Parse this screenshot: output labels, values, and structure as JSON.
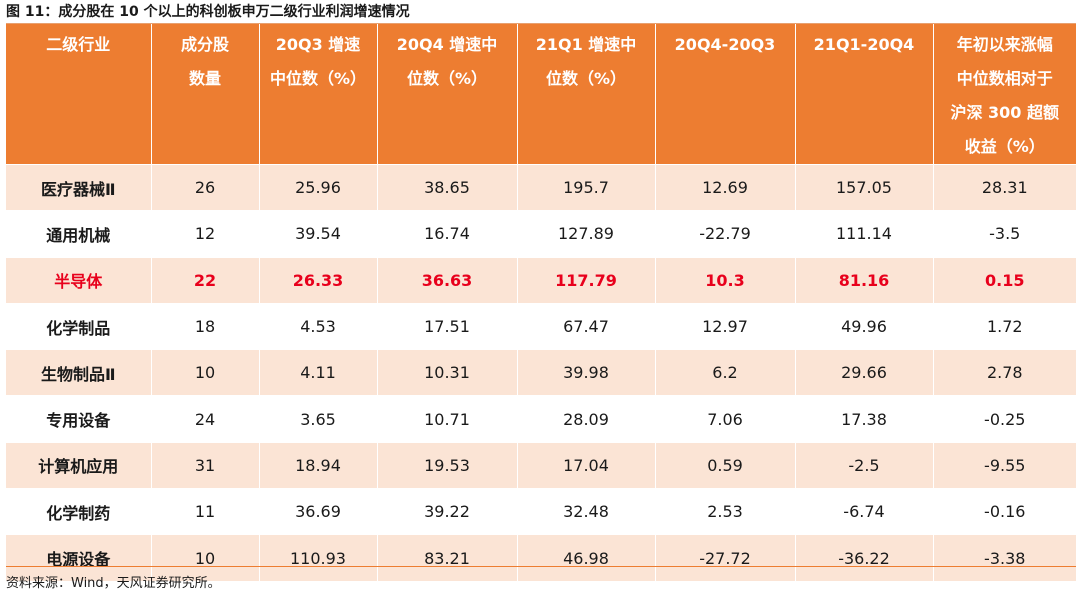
{
  "figure": {
    "title": "图 11：成分股在 10 个以上的科创板申万二级行业利润增速情况",
    "source": "资料来源：Wind，天风证券研究所。"
  },
  "colors": {
    "header_bg": "#ed7d31",
    "header_text": "#ffffff",
    "band_row_bg": "#fbe4d5",
    "highlight_text": "#e8001c"
  },
  "table": {
    "headers": [
      [
        "二级行业"
      ],
      [
        "成分股",
        "数量"
      ],
      [
        "20Q3 增速",
        "中位数（%）"
      ],
      [
        "20Q4 增速中",
        "位数（%）"
      ],
      [
        "21Q1 增速中",
        "位数（%）"
      ],
      [
        "20Q4-20Q3"
      ],
      [
        "21Q1-20Q4"
      ],
      [
        "年初以来涨幅",
        "中位数相对于",
        "沪深 300 超额",
        "收益（%）"
      ]
    ],
    "rows": [
      [
        "医疗器械Ⅱ",
        "26",
        "25.96",
        "38.65",
        "195.7",
        "12.69",
        "157.05",
        "28.31"
      ],
      [
        "通用机械",
        "12",
        "39.54",
        "16.74",
        "127.89",
        "-22.79",
        "111.14",
        "-3.5"
      ],
      [
        "半导体",
        "22",
        "26.33",
        "36.63",
        "117.79",
        "10.3",
        "81.16",
        "0.15"
      ],
      [
        "化学制品",
        "18",
        "4.53",
        "17.51",
        "67.47",
        "12.97",
        "49.96",
        "1.72"
      ],
      [
        "生物制品Ⅱ",
        "10",
        "4.11",
        "10.31",
        "39.98",
        "6.2",
        "29.66",
        "2.78"
      ],
      [
        "专用设备",
        "24",
        "3.65",
        "10.71",
        "28.09",
        "7.06",
        "17.38",
        "-0.25"
      ],
      [
        "计算机应用",
        "31",
        "18.94",
        "19.53",
        "17.04",
        "0.59",
        "-2.5",
        "-9.55"
      ],
      [
        "化学制药",
        "11",
        "36.69",
        "39.22",
        "32.48",
        "2.53",
        "-6.74",
        "-0.16"
      ],
      [
        "电源设备",
        "10",
        "110.93",
        "83.21",
        "46.98",
        "-27.72",
        "-36.22",
        "-3.38"
      ]
    ],
    "highlight_row_index": 2
  }
}
